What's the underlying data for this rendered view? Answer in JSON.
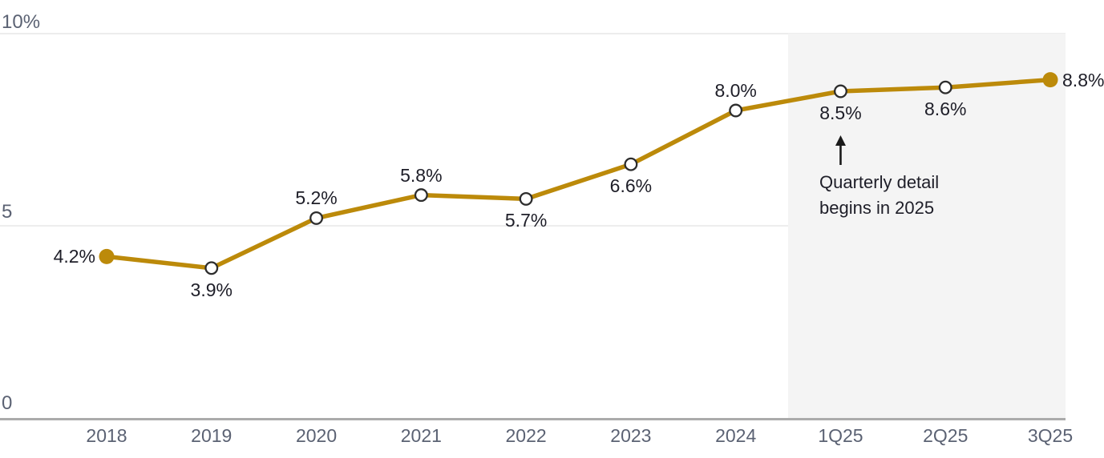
{
  "chart_data": {
    "type": "line",
    "title": "",
    "xlabel": "",
    "ylabel": "",
    "categories": [
      "2018",
      "2019",
      "2020",
      "2021",
      "2022",
      "2023",
      "2024",
      "1Q25",
      "2Q25",
      "3Q25"
    ],
    "values": [
      4.2,
      3.9,
      5.2,
      5.8,
      5.7,
      6.6,
      8.0,
      8.5,
      8.6,
      8.8
    ],
    "point_labels": [
      "4.2%",
      "3.9%",
      "5.2%",
      "5.8%",
      "5.7%",
      "6.6%",
      "8.0%",
      "8.5%",
      "8.6%",
      "8.8%"
    ],
    "label_positions": [
      "left",
      "below",
      "above",
      "above",
      "below",
      "below",
      "above",
      "below",
      "below",
      "right"
    ],
    "point_styles": [
      "filled",
      "open",
      "open",
      "open",
      "open",
      "open",
      "open",
      "open",
      "open",
      "filled"
    ],
    "ylim": [
      0,
      10
    ],
    "yticks": [
      {
        "value": 10,
        "label": "10%"
      },
      {
        "value": 5,
        "label": "5"
      },
      {
        "value": 0,
        "label": "0"
      }
    ],
    "grid": "horizontal",
    "legend": "none",
    "highlight_band": {
      "from_category": "1Q25",
      "to_end": true,
      "note": "quarterly period shading"
    },
    "annotation": {
      "line1": "Quarterly detail",
      "line2": "begins in 2025",
      "arrow": "up",
      "anchor_category": "1Q25"
    },
    "colors": {
      "line": "#BC8A0A",
      "marker_stroke": "#2d2d2d",
      "marker_fill": "#ffffff",
      "band": "#f4f4f4",
      "grid": "#ededed",
      "axis": "#ababab",
      "tick_text": "#5b6273",
      "label_text": "#1e1e28",
      "arrow": "#1a1a1a"
    }
  }
}
